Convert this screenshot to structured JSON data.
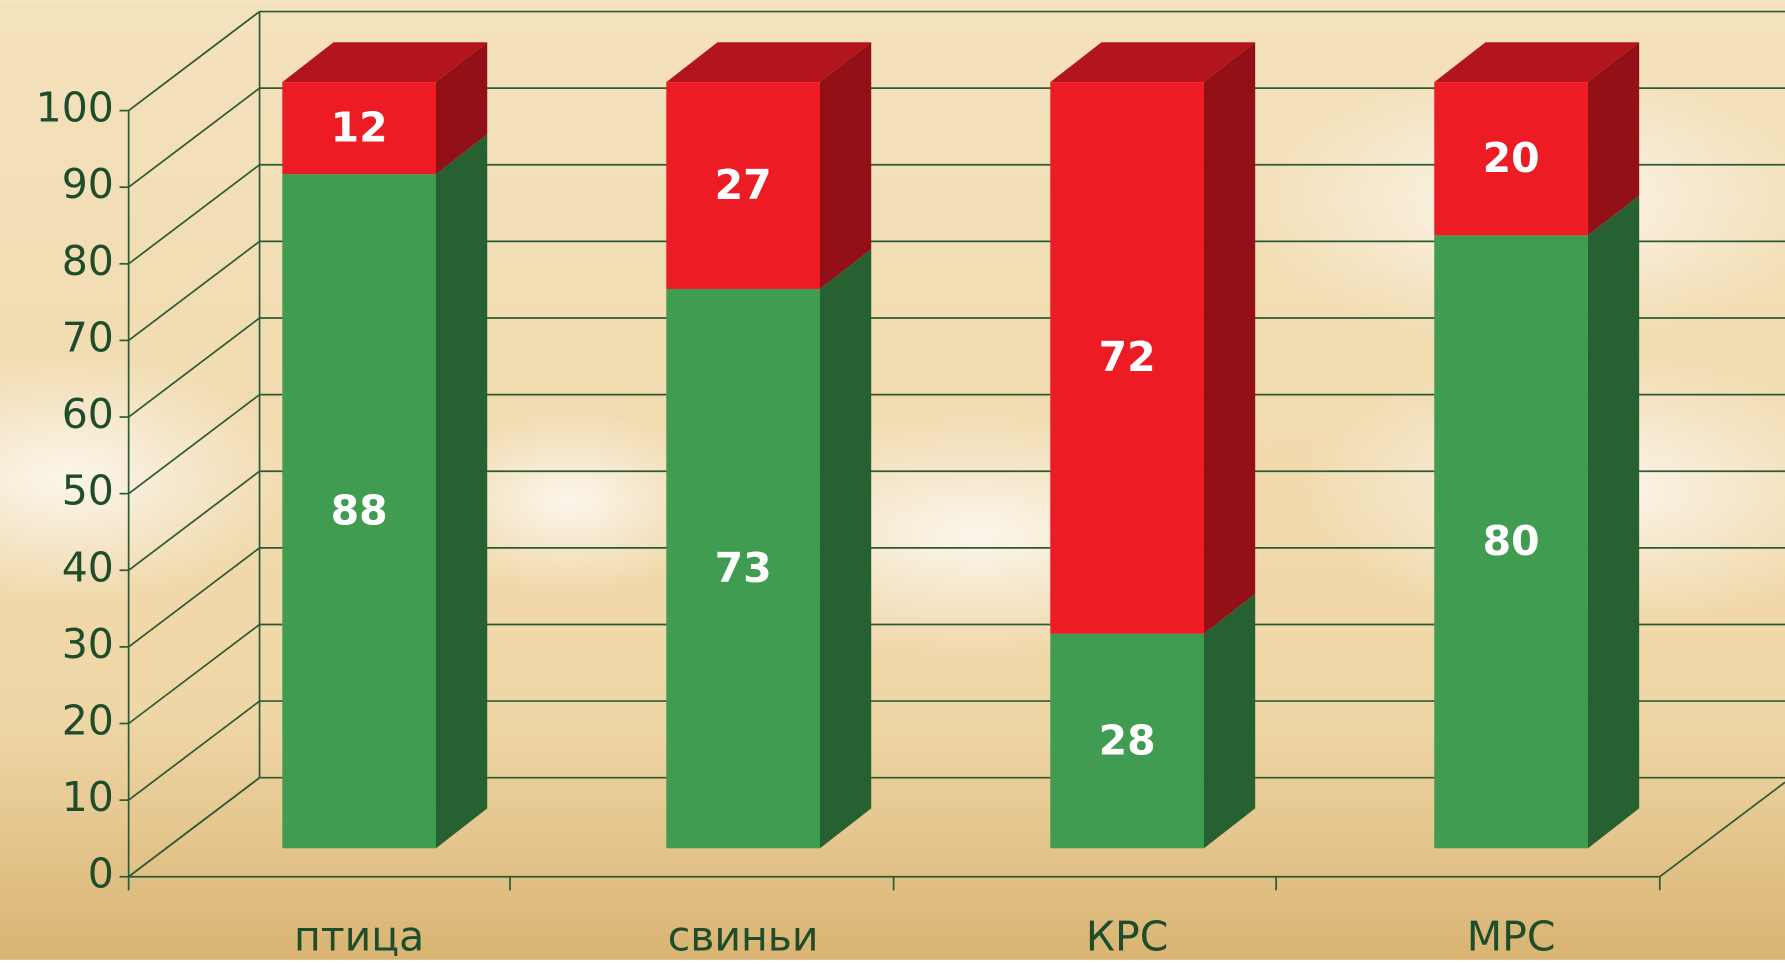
{
  "chart_data": {
    "type": "bar3d_stacked",
    "categories": [
      "птица",
      "свиньи",
      "КРС",
      "МРС"
    ],
    "series": [
      {
        "color": "#3f9c50",
        "values": [
          88,
          73,
          28,
          80
        ]
      },
      {
        "color": "#ed1c24",
        "values": [
          12,
          27,
          72,
          20
        ]
      }
    ],
    "ylim": [
      0,
      100
    ],
    "yticks": [
      0,
      10,
      20,
      30,
      40,
      50,
      60,
      70,
      80,
      90,
      100
    ],
    "grid": true
  }
}
